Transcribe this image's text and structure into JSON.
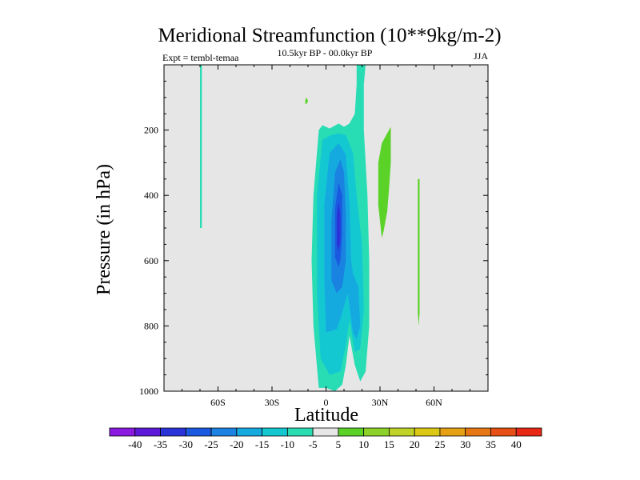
{
  "chart_data": {
    "type": "contour",
    "title": "Meridional Streamfunction (10**9kg/m-2)",
    "subtitle_left": "Expt = tembl-temaa",
    "subtitle_center": "10.5kyr BP - 00.0kyr BP",
    "subtitle_right": "JJA",
    "xlabel": "Latitude",
    "ylabel": "Pressure (in hPa)",
    "xlim": [
      -90,
      90
    ],
    "ylim": [
      1000,
      0
    ],
    "x_ticks": [
      {
        "value": -60,
        "label": "60S"
      },
      {
        "value": -30,
        "label": "30S"
      },
      {
        "value": 0,
        "label": "0"
      },
      {
        "value": 30,
        "label": "30N"
      },
      {
        "value": 60,
        "label": "60N"
      }
    ],
    "y_ticks": [
      {
        "value": 200,
        "label": "200"
      },
      {
        "value": 400,
        "label": "400"
      },
      {
        "value": 600,
        "label": "600"
      },
      {
        "value": 800,
        "label": "800"
      },
      {
        "value": 1000,
        "label": "1000"
      }
    ],
    "background_color": "#e6e6e6",
    "colorbar": {
      "levels": [
        "-40",
        "-35",
        "-30",
        "-25",
        "-20",
        "-15",
        "-10",
        "-5",
        "5",
        "10",
        "15",
        "20",
        "25",
        "30",
        "35",
        "40"
      ],
      "colors": [
        "#8a1ae0",
        "#5a1ad8",
        "#2a32d8",
        "#1a5ae0",
        "#1a82e0",
        "#14aae0",
        "#14c8d2",
        "#28dcb4",
        "#e6e6e6",
        "#5ad228",
        "#8cd228",
        "#bed228",
        "#dcc814",
        "#e6a014",
        "#e67814",
        "#e65014",
        "#e62814"
      ]
    },
    "regions": [
      {
        "name": "main-negative-cell-outer",
        "fill": "#28dcb4",
        "points": [
          [
            -4,
            990
          ],
          [
            -7,
            800
          ],
          [
            -8,
            600
          ],
          [
            -7,
            400
          ],
          [
            -4,
            200
          ],
          [
            -2,
            185
          ],
          [
            2,
            195
          ],
          [
            7,
            180
          ],
          [
            10,
            190
          ],
          [
            13,
            180
          ],
          [
            16,
            150
          ],
          [
            17,
            60
          ],
          [
            17,
            0
          ],
          [
            22,
            0
          ],
          [
            21,
            60
          ],
          [
            21,
            200
          ],
          [
            23,
            400
          ],
          [
            24,
            600
          ],
          [
            24,
            800
          ],
          [
            22,
            940
          ],
          [
            19,
            970
          ],
          [
            16,
            920
          ],
          [
            13,
            830
          ],
          [
            11,
            920
          ],
          [
            9,
            980
          ],
          [
            5,
            1000
          ],
          [
            0,
            990
          ]
        ]
      },
      {
        "name": "main-negative-cell-10",
        "fill": "#14c8d2",
        "points": [
          [
            -3,
            900
          ],
          [
            -5,
            700
          ],
          [
            -5,
            400
          ],
          [
            -2,
            230
          ],
          [
            3,
            215
          ],
          [
            7,
            210
          ],
          [
            11,
            215
          ],
          [
            15,
            270
          ],
          [
            17,
            400
          ],
          [
            20,
            550
          ],
          [
            21,
            750
          ],
          [
            19,
            870
          ],
          [
            16,
            880
          ],
          [
            13,
            780
          ],
          [
            11,
            860
          ],
          [
            8,
            940
          ],
          [
            2,
            950
          ]
        ]
      },
      {
        "name": "main-negative-cell-15",
        "fill": "#14aae0",
        "points": [
          [
            0,
            820
          ],
          [
            -1,
            650
          ],
          [
            -1,
            430
          ],
          [
            2,
            270
          ],
          [
            7,
            240
          ],
          [
            11,
            275
          ],
          [
            13,
            420
          ],
          [
            14,
            600
          ],
          [
            15,
            640
          ],
          [
            18,
            680
          ],
          [
            19,
            800
          ],
          [
            17,
            840
          ],
          [
            15,
            820
          ],
          [
            12,
            700
          ],
          [
            9,
            760
          ],
          [
            6,
            810
          ]
        ]
      },
      {
        "name": "main-negative-cell-20",
        "fill": "#1a82e0",
        "points": [
          [
            3,
            660
          ],
          [
            3,
            480
          ],
          [
            5,
            330
          ],
          [
            8,
            290
          ],
          [
            10,
            330
          ],
          [
            11,
            460
          ],
          [
            11,
            600
          ],
          [
            9,
            680
          ],
          [
            6,
            700
          ]
        ]
      },
      {
        "name": "main-negative-cell-25",
        "fill": "#1a5ae0",
        "points": [
          [
            5,
            590
          ],
          [
            5,
            440
          ],
          [
            7,
            360
          ],
          [
            9,
            400
          ],
          [
            9,
            520
          ],
          [
            8,
            600
          ],
          [
            7,
            620
          ]
        ]
      },
      {
        "name": "main-negative-cell-30",
        "fill": "#2a32d8",
        "points": [
          [
            6,
            550
          ],
          [
            6,
            460
          ],
          [
            7,
            420
          ],
          [
            8,
            460
          ],
          [
            8,
            540
          ],
          [
            7,
            570
          ]
        ]
      },
      {
        "name": "sh-negative-strip",
        "fill": "#28dcb4",
        "points": [
          [
            -70,
            0
          ],
          [
            -69,
            0
          ],
          [
            -69,
            500
          ],
          [
            -70,
            500
          ]
        ]
      },
      {
        "name": "small-positive-blob",
        "fill": "#5ad228",
        "points": [
          [
            -11.5,
            108
          ],
          [
            -11,
            100
          ],
          [
            -10,
            110
          ],
          [
            -10.5,
            118
          ],
          [
            -11.5,
            120
          ]
        ]
      },
      {
        "name": "nh-positive-cell",
        "fill": "#5ad228",
        "points": [
          [
            31,
            530
          ],
          [
            29,
            430
          ],
          [
            29,
            300
          ],
          [
            31,
            240
          ],
          [
            36,
            190
          ],
          [
            36,
            300
          ],
          [
            35,
            380
          ],
          [
            34,
            450
          ],
          [
            32,
            510
          ]
        ]
      },
      {
        "name": "nh-positive-strip",
        "fill": "#5ad228",
        "points": [
          [
            51.5,
            800
          ],
          [
            51,
            760
          ],
          [
            51,
            350
          ],
          [
            52,
            350
          ],
          [
            52,
            760
          ]
        ]
      }
    ]
  }
}
